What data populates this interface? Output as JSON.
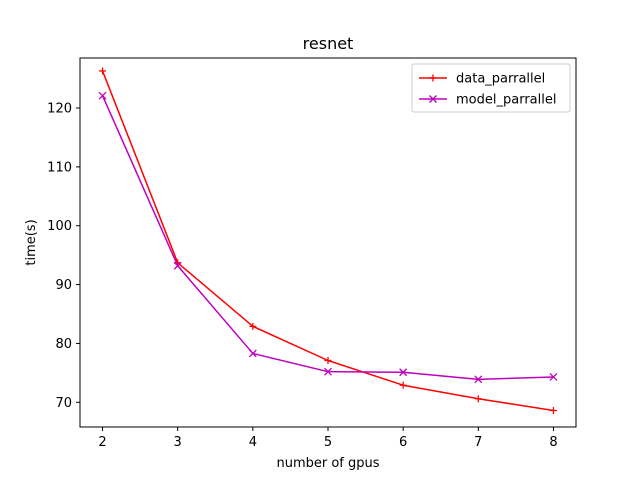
{
  "chart_data": {
    "type": "line",
    "title": "resnet",
    "xlabel": "number of gpus",
    "ylabel": "time(s)",
    "x": [
      2,
      3,
      4,
      5,
      6,
      7,
      8
    ],
    "xlim": [
      1.7,
      8.3
    ],
    "ylim": [
      65.8,
      128.5
    ],
    "xticks": [
      2,
      3,
      4,
      5,
      6,
      7,
      8
    ],
    "yticks": [
      70,
      80,
      90,
      100,
      110,
      120
    ],
    "grid": false,
    "legend_position": "top-right",
    "series": [
      {
        "name": "data_parrallel",
        "color": "#ff0000",
        "marker": "plus",
        "values": [
          126.3,
          93.7,
          82.9,
          77.1,
          72.9,
          70.6,
          68.6
        ]
      },
      {
        "name": "model_parrallel",
        "color": "#bf00bf",
        "marker": "x",
        "values": [
          122.1,
          93.2,
          78.3,
          75.2,
          75.1,
          73.9,
          74.3
        ]
      }
    ]
  }
}
